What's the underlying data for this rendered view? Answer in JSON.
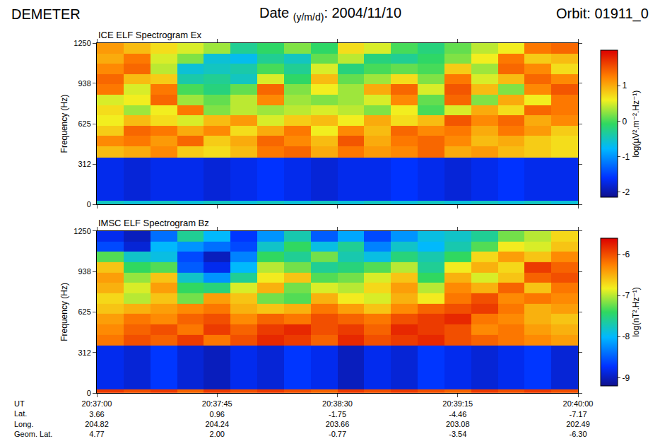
{
  "header": {
    "title_left": "DEMETER",
    "date_label": "Date",
    "date_format": "(y/m/d)",
    "date_value": ": 2004/11/10",
    "orbit": "Orbit: 01911_0"
  },
  "chart_data": [
    {
      "type": "heatmap",
      "title": "ICE ELF Spectrogram Ex",
      "y_label": "Frequency (Hz)",
      "colorbar_title": "log(µV².m⁻².Hz⁻¹)",
      "tick_labels": "y",
      "xlim": [
        "2004-11-10 20:37:00",
        "2004-11-10 20:40:00"
      ],
      "xticks": [
        {
          "value": "2004-11-10 20:37:00",
          "label": "20:37:00"
        },
        {
          "value": "2004-11-10 20:37:45",
          "label": "20:37:45"
        },
        {
          "value": "2004-11-10 20:38:30",
          "label": "20:38:30"
        },
        {
          "value": "2004-11-10 20:39:15",
          "label": "20:39:15"
        },
        {
          "value": "2004-11-10 20:40:00",
          "label": "20:40:00"
        }
      ],
      "ylim": [
        0,
        1250
      ],
      "yticks": [
        0,
        312,
        625,
        938,
        1250
      ],
      "zlim": [
        -2.15,
        2.0
      ],
      "zticks": [
        -2,
        -1,
        0,
        1
      ],
      "x_edges": [
        "2004-11-10 20:37:00",
        "2004-11-10 20:37:10",
        "2004-11-10 20:37:20",
        "2004-11-10 20:37:30",
        "2004-11-10 20:37:40",
        "2004-11-10 20:37:50",
        "2004-11-10 20:38:00",
        "2004-11-10 20:38:10",
        "2004-11-10 20:38:20",
        "2004-11-10 20:38:30",
        "2004-11-10 20:38:40",
        "2004-11-10 20:38:50",
        "2004-11-10 20:39:00",
        "2004-11-10 20:39:10",
        "2004-11-10 20:39:20",
        "2004-11-10 20:39:30",
        "2004-11-10 20:39:40",
        "2004-11-10 20:39:50",
        "2004-11-10 20:40:00"
      ],
      "y_edges": [
        0,
        30,
        365,
        450,
        530,
        610,
        690,
        770,
        850,
        930,
        1010,
        1090,
        1170,
        1250
      ],
      "cells": [
        [
          -0.5,
          -0.6,
          -0.5,
          -0.6,
          -0.5,
          -0.6,
          -0.5,
          -0.6,
          -0.5,
          -0.6,
          -0.5,
          -0.6,
          -0.5,
          -0.6,
          -0.5,
          -0.6,
          -0.5,
          -0.6
        ],
        [
          -1.7,
          -1.8,
          -1.7,
          -1.7,
          -1.8,
          -1.7,
          -1.6,
          -1.7,
          -1.8,
          -1.7,
          -1.7,
          -1.6,
          -1.7,
          -1.8,
          -1.7,
          -1.6,
          -1.7,
          -1.7
        ],
        [
          0.9,
          1.0,
          1.2,
          0.8,
          0.7,
          0.9,
          1.3,
          1.4,
          1.0,
          1.3,
          1.1,
          1.2,
          1.4,
          1.0,
          1.1,
          0.9,
          0.8,
          0.7
        ],
        [
          1.2,
          1.3,
          1.1,
          1.4,
          0.8,
          1.0,
          1.4,
          1.2,
          0.9,
          1.5,
          1.0,
          1.3,
          1.4,
          1.2,
          0.9,
          1.0,
          0.8,
          0.7
        ],
        [
          0.8,
          1.4,
          1.3,
          1.0,
          1.2,
          0.7,
          1.0,
          1.3,
          0.6,
          1.2,
          0.9,
          1.4,
          1.2,
          1.3,
          1.0,
          1.3,
          1.1,
          0.8
        ],
        [
          0.6,
          0.9,
          0.7,
          0.5,
          0.9,
          1.1,
          0.5,
          0.8,
          0.9,
          0.6,
          1.0,
          0.7,
          0.9,
          1.5,
          1.2,
          1.4,
          1.0,
          1.2
        ],
        [
          0.7,
          0.3,
          0.6,
          1.3,
          0.2,
          0.4,
          0.3,
          0.4,
          0.5,
          0.4,
          0.2,
          0.6,
          0.0,
          0.5,
          1.0,
          0.7,
          1.4,
          1.3
        ],
        [
          0.5,
          0.6,
          1.4,
          0.3,
          0.1,
          0.4,
          1.2,
          0.3,
          0.2,
          0.3,
          0.5,
          1.2,
          0.1,
          1.4,
          0.2,
          1.0,
          0.6,
          1.3
        ],
        [
          1.3,
          0.5,
          1.3,
          0.0,
          -0.2,
          0.1,
          1.4,
          0.2,
          0.6,
          0.3,
          1.0,
          1.4,
          0.5,
          1.5,
          0.9,
          0.2,
          1.2,
          1.5
        ],
        [
          1.4,
          0.9,
          0.8,
          -0.4,
          -0.3,
          -0.5,
          0.5,
          -0.1,
          0.9,
          0.1,
          0.3,
          0.7,
          0.2,
          1.3,
          0.5,
          0.9,
          1.4,
          1.2
        ],
        [
          1.2,
          1.4,
          0.4,
          -0.6,
          -0.5,
          -0.4,
          0.0,
          -0.3,
          0.5,
          -0.2,
          0.0,
          0.1,
          0.0,
          0.8,
          0.3,
          1.4,
          1.2,
          0.7
        ],
        [
          1.0,
          1.3,
          0.5,
          0.2,
          -0.6,
          -0.7,
          -0.3,
          -0.5,
          0.1,
          0.4,
          -0.2,
          -0.3,
          -0.1,
          0.2,
          0.6,
          1.3,
          0.8,
          0.9
        ],
        [
          1.1,
          0.9,
          0.7,
          0.5,
          0.3,
          -0.3,
          -0.1,
          0.2,
          -0.1,
          0.7,
          0.5,
          0.0,
          -0.2,
          0.1,
          0.4,
          0.6,
          1.3,
          1.4
        ]
      ]
    },
    {
      "type": "heatmap",
      "title": "IMSC ELF Spectrogram Bz",
      "y_label": "Frequency (Hz)",
      "colorbar_title": "log(nT².Hz⁻¹)",
      "xlim": [
        "2004-11-10 20:37:00",
        "2004-11-10 20:40:00"
      ],
      "xticks": [
        {
          "value": "2004-11-10 20:37:00",
          "label": "20:37:00"
        },
        {
          "value": "2004-11-10 20:37:45",
          "label": "20:37:45"
        },
        {
          "value": "2004-11-10 20:38:30",
          "label": "20:38:30"
        },
        {
          "value": "2004-11-10 20:39:15",
          "label": "20:39:15"
        },
        {
          "value": "2004-11-10 20:40:00",
          "label": "20:40:00"
        }
      ],
      "ephemeris": {
        "row_labels": [
          "UT",
          "Lat.",
          "Long.",
          "Geom. Lat."
        ],
        "rows": [
          [
            "3.66",
            "0.96",
            "-1.75",
            "-4.46",
            "-7.17"
          ],
          [
            "204.82",
            "204.24",
            "203.66",
            "203.08",
            "202.49"
          ],
          [
            "4.77",
            "2.00",
            "-0.77",
            "-3.54",
            "-6.30"
          ]
        ]
      },
      "ylim": [
        0,
        1250
      ],
      "yticks": [
        0,
        312,
        625,
        938,
        1250
      ],
      "zlim": [
        -9.2,
        -5.6
      ],
      "zticks": [
        -9,
        -8,
        -7,
        -6
      ],
      "x_edges": [
        "2004-11-10 20:37:00",
        "2004-11-10 20:37:10",
        "2004-11-10 20:37:20",
        "2004-11-10 20:37:30",
        "2004-11-10 20:37:40",
        "2004-11-10 20:37:50",
        "2004-11-10 20:38:00",
        "2004-11-10 20:38:10",
        "2004-11-10 20:38:20",
        "2004-11-10 20:38:30",
        "2004-11-10 20:38:40",
        "2004-11-10 20:38:50",
        "2004-11-10 20:39:00",
        "2004-11-10 20:39:10",
        "2004-11-10 20:39:20",
        "2004-11-10 20:39:30",
        "2004-11-10 20:39:40",
        "2004-11-10 20:39:50",
        "2004-11-10 20:40:00"
      ],
      "y_edges": [
        0,
        30,
        365,
        450,
        530,
        610,
        690,
        770,
        850,
        930,
        1010,
        1090,
        1170,
        1250
      ],
      "cells": [
        [
          -5.9,
          -6.0,
          -5.9,
          -6.1,
          -5.9,
          -6.0,
          -5.9,
          -6.0,
          -6.1,
          -5.9,
          -6.0,
          -5.9,
          -6.0,
          -6.1,
          -5.9,
          -6.0,
          -5.9,
          -6.0
        ],
        [
          -8.8,
          -8.9,
          -8.7,
          -8.9,
          -9.0,
          -8.8,
          -8.9,
          -8.7,
          -8.8,
          -9.0,
          -8.8,
          -8.9,
          -8.7,
          -8.8,
          -8.9,
          -8.8,
          -8.7,
          -8.9
        ],
        [
          -6.2,
          -6.0,
          -6.1,
          -5.9,
          -6.2,
          -6.0,
          -5.8,
          -5.9,
          -6.1,
          -5.8,
          -6.0,
          -5.9,
          -5.8,
          -6.0,
          -6.1,
          -6.2,
          -6.3,
          -6.4
        ],
        [
          -6.3,
          -6.1,
          -6.0,
          -6.2,
          -5.9,
          -6.1,
          -5.9,
          -5.8,
          -6.0,
          -5.9,
          -6.1,
          -5.8,
          -5.9,
          -6.0,
          -6.3,
          -6.2,
          -6.4,
          -6.5
        ],
        [
          -6.4,
          -6.2,
          -6.3,
          -6.1,
          -6.0,
          -6.3,
          -6.1,
          -6.2,
          -6.0,
          -6.1,
          -6.2,
          -6.0,
          -5.9,
          -5.8,
          -6.2,
          -6.3,
          -6.5,
          -6.6
        ],
        [
          -6.6,
          -6.5,
          -6.4,
          -6.3,
          -6.2,
          -6.5,
          -6.6,
          -6.5,
          -6.2,
          -6.4,
          -6.6,
          -6.3,
          -6.1,
          -6.0,
          -5.9,
          -6.2,
          -6.5,
          -6.4
        ],
        [
          -6.7,
          -7.0,
          -6.6,
          -7.2,
          -6.4,
          -6.6,
          -7.2,
          -7.3,
          -6.5,
          -6.8,
          -6.9,
          -6.5,
          -6.8,
          -6.2,
          -6.0,
          -6.3,
          -6.2,
          -6.3
        ],
        [
          -6.5,
          -6.9,
          -6.4,
          -7.4,
          -7.5,
          -6.9,
          -6.5,
          -7.2,
          -6.9,
          -7.0,
          -6.7,
          -6.4,
          -7.0,
          -6.3,
          -6.5,
          -6.1,
          -6.6,
          -6.2
        ],
        [
          -6.4,
          -7.1,
          -6.6,
          -7.8,
          -8.2,
          -7.6,
          -6.8,
          -6.6,
          -7.3,
          -7.2,
          -6.9,
          -6.6,
          -7.4,
          -6.5,
          -6.9,
          -6.6,
          -6.1,
          -6.0
        ],
        [
          -6.6,
          -7.4,
          -7.3,
          -8.5,
          -8.8,
          -8.0,
          -7.0,
          -7.2,
          -7.6,
          -7.5,
          -7.3,
          -7.0,
          -7.6,
          -6.8,
          -6.5,
          -6.7,
          -5.9,
          -6.1
        ],
        [
          -7.3,
          -7.8,
          -7.9,
          -8.6,
          -9.0,
          -8.3,
          -7.4,
          -7.6,
          -7.2,
          -7.7,
          -7.9,
          -7.5,
          -7.7,
          -7.4,
          -6.7,
          -6.4,
          -6.6,
          -6.3
        ],
        [
          -8.6,
          -8.9,
          -8.0,
          -8.2,
          -8.4,
          -8.6,
          -7.8,
          -7.4,
          -7.9,
          -7.6,
          -8.3,
          -7.8,
          -8.0,
          -7.7,
          -7.3,
          -6.8,
          -6.9,
          -6.6
        ],
        [
          -8.8,
          -9.0,
          -8.4,
          -7.6,
          -8.0,
          -8.7,
          -8.2,
          -7.7,
          -8.5,
          -8.1,
          -8.6,
          -8.2,
          -7.9,
          -7.8,
          -7.6,
          -7.2,
          -7.0,
          -6.7
        ]
      ]
    }
  ]
}
